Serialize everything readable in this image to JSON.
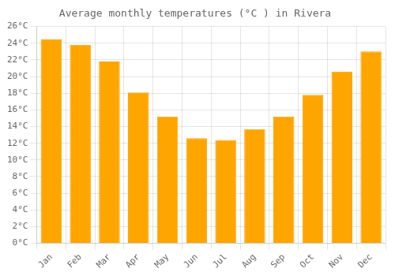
{
  "chart_data": {
    "type": "bar",
    "title": "Average monthly temperatures (°C ) in Rivera",
    "categories": [
      "Jan",
      "Feb",
      "Mar",
      "Apr",
      "May",
      "Jun",
      "Jul",
      "Aug",
      "Sep",
      "Oct",
      "Nov",
      "Dec"
    ],
    "values": [
      24.5,
      23.8,
      21.8,
      18.1,
      15.2,
      12.6,
      12.4,
      13.7,
      15.2,
      17.8,
      20.6,
      23.0
    ],
    "color": "#FFA500",
    "ylim": [
      0,
      26
    ],
    "yticks": [
      {
        "value": 0,
        "label": "0°C"
      },
      {
        "value": 2,
        "label": "2°C"
      },
      {
        "value": 4,
        "label": "4°C"
      },
      {
        "value": 6,
        "label": "6°C"
      },
      {
        "value": 8,
        "label": "8°C"
      },
      {
        "value": 10,
        "label": "10°C"
      },
      {
        "value": 12,
        "label": "12°C"
      },
      {
        "value": 14,
        "label": "14°C"
      },
      {
        "value": 16,
        "label": "16°C"
      },
      {
        "value": 18,
        "label": "18°C"
      },
      {
        "value": 20,
        "label": "20°C"
      },
      {
        "value": 22,
        "label": "22°C"
      },
      {
        "value": 24,
        "label": "24°C"
      },
      {
        "value": 26,
        "label": "26°C"
      }
    ],
    "grid": true
  }
}
